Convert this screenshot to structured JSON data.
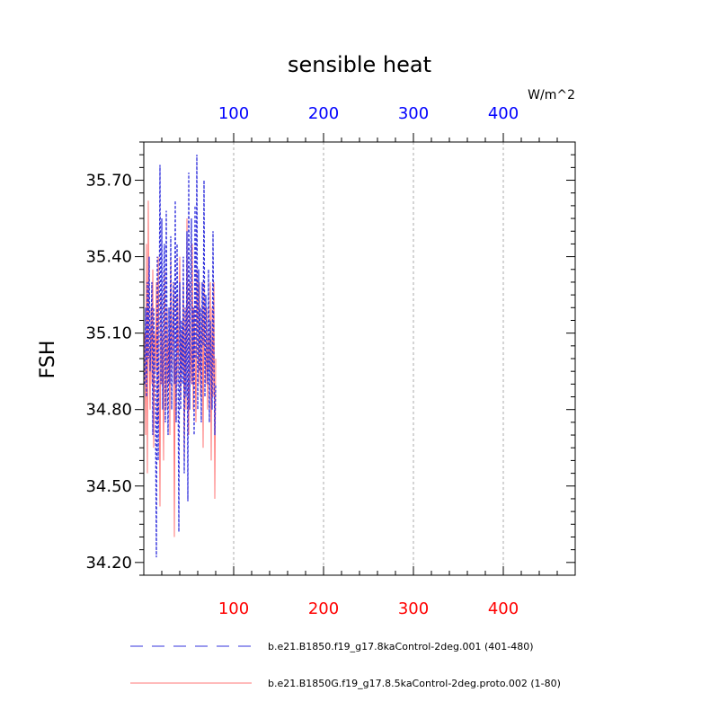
{
  "chart_data": {
    "type": "line",
    "title": "sensible heat",
    "units": "W/m^2",
    "ylabel": "FSH",
    "xlim": [
      0,
      480
    ],
    "ylim": [
      34.15,
      35.85
    ],
    "xticks_top": [
      "100",
      "200",
      "300",
      "400"
    ],
    "xticks_bottom": [
      "100",
      "200",
      "300",
      "400"
    ],
    "yticks": [
      "34.20",
      "34.50",
      "34.80",
      "35.10",
      "35.40",
      "35.70"
    ],
    "xgrid": true,
    "ygrid": false,
    "colors": {
      "top_ticks": "#0000ff",
      "bottom_ticks": "#ff0000",
      "series_1": "#3333dd",
      "series_2": "#ff7777"
    },
    "legend_position": "bottom",
    "series": [
      {
        "name": "b.e21.B1850.f19_g17.8kaControl-2deg.001 (401-480)",
        "style": "dashed",
        "x": [
          1,
          2,
          3,
          4,
          5,
          6,
          7,
          8,
          9,
          10,
          11,
          12,
          13,
          14,
          15,
          16,
          17,
          18,
          19,
          20,
          21,
          22,
          23,
          24,
          25,
          26,
          27,
          28,
          29,
          30,
          31,
          32,
          33,
          34,
          35,
          36,
          37,
          38,
          39,
          40,
          41,
          42,
          43,
          44,
          45,
          46,
          47,
          48,
          49,
          50,
          51,
          52,
          53,
          54,
          55,
          56,
          57,
          58,
          59,
          60,
          61,
          62,
          63,
          64,
          65,
          66,
          67,
          68,
          69,
          70,
          71,
          72,
          73,
          74,
          75,
          76,
          77,
          78,
          79,
          80
        ],
        "values": [
          34.9,
          35.2,
          34.85,
          35.3,
          35.0,
          35.4,
          34.95,
          35.1,
          35.3,
          34.7,
          35.2,
          35.0,
          34.8,
          34.22,
          35.4,
          34.6,
          35.1,
          35.76,
          34.9,
          35.55,
          34.8,
          35.3,
          35.45,
          34.75,
          35.58,
          35.0,
          34.7,
          35.2,
          34.9,
          35.48,
          34.8,
          35.1,
          35.3,
          34.9,
          35.62,
          34.75,
          35.45,
          35.0,
          34.32,
          35.3,
          34.8,
          35.15,
          34.9,
          35.4,
          34.55,
          35.2,
          34.85,
          35.5,
          34.44,
          35.73,
          34.8,
          35.3,
          35.55,
          34.9,
          35.2,
          34.7,
          35.6,
          35.0,
          35.8,
          34.8,
          35.35,
          34.95,
          35.2,
          34.75,
          35.3,
          35.05,
          35.7,
          34.85,
          35.25,
          35.0,
          34.9,
          35.35,
          34.75,
          35.15,
          35.0,
          34.8,
          35.5,
          35.0,
          34.7,
          34.9
        ]
      },
      {
        "name": "b.e21.B1850G.f19_g17.8.5kaControl-2deg.proto.002 (1-80)",
        "style": "solid",
        "x": [
          1,
          2,
          3,
          4,
          5,
          6,
          7,
          8,
          9,
          10,
          11,
          12,
          13,
          14,
          15,
          16,
          17,
          18,
          19,
          20,
          21,
          22,
          23,
          24,
          25,
          26,
          27,
          28,
          29,
          30,
          31,
          32,
          33,
          34,
          35,
          36,
          37,
          38,
          39,
          40,
          41,
          42,
          43,
          44,
          45,
          46,
          47,
          48,
          49,
          50,
          51,
          52,
          53,
          54,
          55,
          56,
          57,
          58,
          59,
          60,
          61,
          62,
          63,
          64,
          65,
          66,
          67,
          68,
          69,
          70,
          71,
          72,
          73,
          74,
          75,
          76,
          77,
          78,
          79,
          80
        ],
        "values": [
          35.1,
          34.7,
          35.45,
          34.55,
          35.62,
          35.0,
          34.8,
          35.2,
          34.9,
          35.35,
          34.65,
          35.1,
          34.95,
          35.3,
          34.75,
          35.4,
          35.0,
          34.42,
          35.25,
          34.9,
          35.1,
          34.6,
          35.35,
          35.0,
          34.8,
          35.2,
          34.9,
          35.1,
          34.7,
          35.4,
          34.95,
          35.05,
          35.3,
          34.3,
          35.0,
          34.75,
          35.25,
          34.9,
          35.15,
          35.4,
          34.85,
          35.1,
          34.95,
          35.3,
          34.6,
          35.2,
          34.8,
          35.55,
          35.0,
          34.7,
          35.3,
          35.05,
          34.9,
          35.45,
          34.8,
          35.2,
          35.0,
          34.75,
          35.35,
          35.1,
          34.9,
          35.3,
          34.85,
          35.05,
          35.2,
          34.65,
          35.3,
          35.0,
          34.9,
          35.2,
          34.8,
          35.1,
          34.95,
          35.3,
          34.6,
          35.2,
          34.85,
          35.3,
          34.45,
          35.0
        ]
      }
    ]
  }
}
